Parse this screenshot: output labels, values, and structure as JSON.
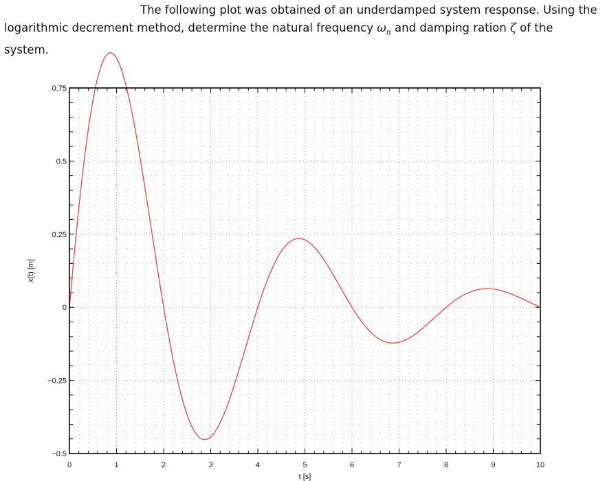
{
  "problem": {
    "line1": "The following plot was obtained of an underdamped system response. Using the",
    "line2_a": "logarithmic decrement method, determine the natural frequency ",
    "omega_symbol": "ω",
    "omega_sub": "n",
    "line2_b": " and damping ration ",
    "zeta_symbol": "ζ",
    "line2_c": " of the",
    "line3": "system."
  },
  "chart_data": {
    "type": "line",
    "title": "",
    "xlabel": "t [s]",
    "ylabel": "x(t) [m]",
    "xlim": [
      0,
      10
    ],
    "ylim": [
      -0.5,
      0.75
    ],
    "x_ticks": [
      0,
      1,
      2,
      3,
      4,
      5,
      6,
      7,
      8,
      9,
      10
    ],
    "x_tick_labels": [
      "0",
      "1",
      "2",
      "3",
      "4",
      "5",
      "6",
      "7",
      "8",
      "9",
      "10"
    ],
    "y_ticks": [
      -0.5,
      -0.25,
      0,
      0.25,
      0.5,
      0.75
    ],
    "y_tick_labels": [
      "−0.5",
      "−0.25",
      "0",
      "0.25",
      "0.5",
      "0.75"
    ],
    "x_minor_step": 0.2,
    "y_minor_step": 0.05,
    "grid": "dotted (major and minor)",
    "legend": "none",
    "series": [
      {
        "name": "x(t)",
        "color": "#e0474c",
        "model": "x(t) = A·e^(−σt)·sin(ωd·t)",
        "params": {
          "A": 1.181,
          "sigma": 0.327,
          "omega_d": 1.5708
        },
        "extrema": [
          {
            "t": 0.87,
            "x": 0.745,
            "kind": "peak"
          },
          {
            "t": 2.87,
            "x": -0.387,
            "kind": "trough"
          },
          {
            "t": 4.85,
            "x": 0.202,
            "kind": "peak"
          },
          {
            "t": 6.85,
            "x": -0.103,
            "kind": "trough"
          },
          {
            "t": 8.83,
            "x": 0.056,
            "kind": "peak"
          }
        ],
        "zero_crossings": [
          0,
          2,
          4,
          6,
          8,
          10
        ]
      }
    ]
  },
  "colors": {
    "curve": "#e0474c",
    "axes": "#000000",
    "grid": "#9a9a9a",
    "text": "#111111"
  }
}
